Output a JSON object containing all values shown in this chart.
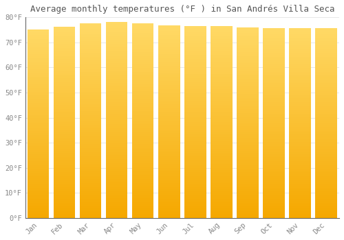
{
  "title": "Average monthly temperatures (°F ) in San Andrés Villa Seca",
  "months": [
    "Jan",
    "Feb",
    "Mar",
    "Apr",
    "May",
    "Jun",
    "Jul",
    "Aug",
    "Sep",
    "Oct",
    "Nov",
    "Dec"
  ],
  "values": [
    75.2,
    76.3,
    77.5,
    78.1,
    77.7,
    76.8,
    76.5,
    76.6,
    76.1,
    75.7,
    75.7,
    75.7
  ],
  "bar_color_bottom": "#F5A800",
  "bar_color_top": "#FFD966",
  "background_color": "#FFFFFF",
  "plot_bg_color": "#FFFFFF",
  "ylim": [
    0,
    80
  ],
  "yticks": [
    0,
    10,
    20,
    30,
    40,
    50,
    60,
    70,
    80
  ],
  "ytick_labels": [
    "0°F",
    "10°F",
    "20°F",
    "30°F",
    "40°F",
    "50°F",
    "60°F",
    "70°F",
    "80°F"
  ],
  "title_fontsize": 9,
  "tick_fontsize": 7.5,
  "grid_color": "#DDDDDD",
  "spine_color": "#666666",
  "tick_label_color": "#888888"
}
